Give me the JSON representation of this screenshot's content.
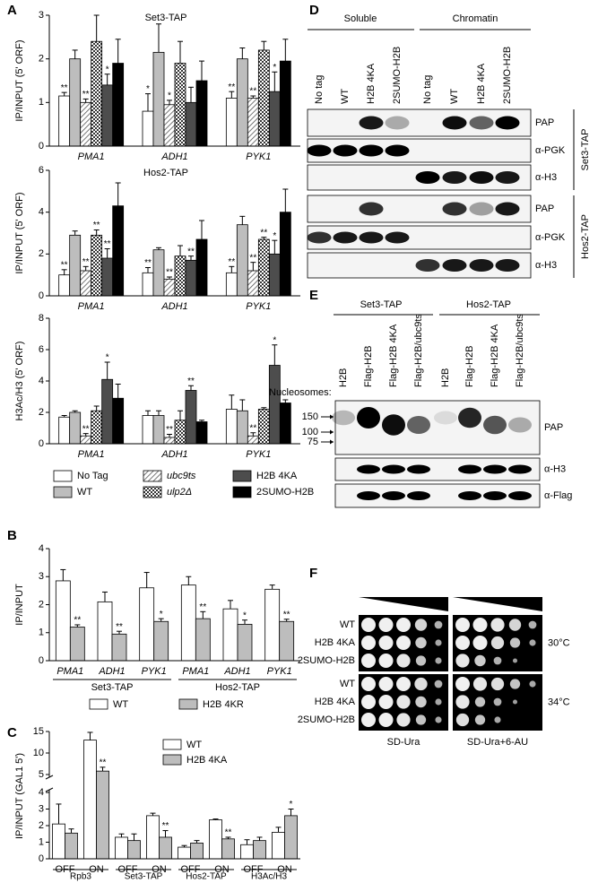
{
  "chart_data": [
    {
      "type": "bar",
      "panel": "A",
      "categories": [
        "PMA1",
        "ADH1",
        "PYK1"
      ],
      "series": [
        {
          "name": "No Tag",
          "color": "#ffffff"
        },
        {
          "name": "WT",
          "color": "#bdbdbd"
        },
        {
          "name": "ubc9ts",
          "color": "#555555",
          "pattern": "hatch"
        },
        {
          "name": "ulp2Δ",
          "color": "#333333",
          "pattern": "checker"
        },
        {
          "name": "H2B 4KA",
          "color": "#4d4d4d"
        },
        {
          "name": "2SUMO-H2B",
          "color": "#000000"
        }
      ],
      "subplots": [
        {
          "title": "Set3-TAP",
          "ylabel": "IP/INPUT (5' ORF)",
          "ylim": [
            0,
            3
          ],
          "yticks": [
            0,
            1,
            2,
            3
          ],
          "series": [
            {
              "values": [
                1.15,
                0.8,
                1.1
              ],
              "errors": [
                0.08,
                0.4,
                0.15
              ],
              "annotations": [
                "**",
                "*",
                "**"
              ]
            },
            {
              "values": [
                2.0,
                2.15,
                2.0
              ],
              "errors": [
                0.2,
                0.65,
                0.25
              ],
              "annotations": [
                null,
                null,
                null
              ]
            },
            {
              "values": [
                1.0,
                0.95,
                1.1
              ],
              "errors": [
                0.08,
                0.1,
                0.05
              ],
              "annotations": [
                "**",
                "*",
                "**"
              ]
            },
            {
              "values": [
                2.4,
                1.9,
                2.2
              ],
              "errors": [
                0.6,
                0.5,
                0.2
              ],
              "annotations": [
                null,
                null,
                null
              ]
            },
            {
              "values": [
                1.4,
                1.0,
                1.25
              ],
              "errors": [
                0.25,
                0.35,
                0.45
              ],
              "annotations": [
                "*",
                null,
                "*"
              ]
            },
            {
              "values": [
                1.9,
                1.5,
                1.95
              ],
              "errors": [
                0.55,
                0.45,
                0.5
              ],
              "annotations": [
                null,
                null,
                null
              ]
            }
          ]
        },
        {
          "title": "Hos2-TAP",
          "ylabel": "IP/INPUT (5' ORF)",
          "ylim": [
            0,
            6
          ],
          "yticks": [
            0,
            2,
            4,
            6
          ],
          "series": [
            {
              "values": [
                1.0,
                1.1,
                1.1
              ],
              "errors": [
                0.25,
                0.25,
                0.3
              ],
              "annotations": [
                "**",
                "**",
                "**"
              ]
            },
            {
              "values": [
                2.9,
                2.2,
                3.4
              ],
              "errors": [
                0.2,
                0.1,
                0.4
              ],
              "annotations": [
                null,
                null,
                null
              ]
            },
            {
              "values": [
                1.2,
                0.8,
                1.2
              ],
              "errors": [
                0.2,
                0.1,
                0.4
              ],
              "annotations": [
                "**",
                "**",
                "**"
              ]
            },
            {
              "values": [
                2.9,
                1.9,
                2.7
              ],
              "errors": [
                0.25,
                0.5,
                0.1
              ],
              "annotations": [
                "**",
                null,
                "**"
              ]
            },
            {
              "values": [
                1.8,
                1.7,
                2.0
              ],
              "errors": [
                0.45,
                0.2,
                0.65
              ],
              "annotations": [
                "**",
                "**",
                "*"
              ]
            },
            {
              "values": [
                4.3,
                2.7,
                4.0
              ],
              "errors": [
                1.1,
                0.9,
                1.1
              ],
              "annotations": [
                null,
                null,
                null
              ]
            }
          ]
        },
        {
          "ylabel": "H3Ac/H3 (5' ORF)",
          "ylim": [
            0,
            8
          ],
          "yticks": [
            0,
            2,
            4,
            6,
            8
          ],
          "series": [
            {
              "values": [
                1.7,
                1.8,
                2.2
              ],
              "errors": [
                0.1,
                0.3,
                0.9
              ],
              "annotations": [
                null,
                null,
                null
              ]
            },
            {
              "values": [
                2.0,
                1.8,
                2.1
              ],
              "errors": [
                0.1,
                0.3,
                0.7
              ],
              "annotations": [
                null,
                null,
                null
              ]
            },
            {
              "values": [
                0.5,
                0.4,
                0.5
              ],
              "errors": [
                0.15,
                0.2,
                0.2
              ],
              "annotations": [
                "**",
                "**",
                "**"
              ]
            },
            {
              "values": [
                2.1,
                1.5,
                2.2
              ],
              "errors": [
                0.3,
                0.6,
                0.1
              ],
              "annotations": [
                null,
                null,
                null
              ]
            },
            {
              "values": [
                4.1,
                3.4,
                5.0
              ],
              "errors": [
                1.1,
                0.3,
                1.3
              ],
              "annotations": [
                "*",
                "**",
                "*"
              ]
            },
            {
              "values": [
                2.9,
                1.4,
                2.6
              ],
              "errors": [
                0.9,
                0.1,
                0.2
              ],
              "annotations": [
                null,
                null,
                null
              ]
            }
          ]
        }
      ]
    },
    {
      "type": "bar",
      "panel": "B",
      "ylabel": "IP/INPUT",
      "ylim": [
        0,
        4
      ],
      "yticks": [
        0,
        1,
        2,
        3,
        4
      ],
      "categories": [
        "PMA1",
        "ADH1",
        "PYK1",
        "PMA1",
        "ADH1",
        "PYK1"
      ],
      "groups": [
        "Set3-TAP",
        "Hos2-TAP"
      ],
      "series": [
        {
          "name": "WT",
          "color": "#ffffff",
          "values": [
            2.85,
            2.1,
            2.6,
            2.7,
            1.85,
            2.55
          ],
          "errors": [
            0.4,
            0.35,
            0.55,
            0.3,
            0.3,
            0.15
          ],
          "annotations": [
            null,
            null,
            null,
            null,
            null,
            null
          ]
        },
        {
          "name": "H2B 4KR",
          "color": "#bdbdbd",
          "values": [
            1.2,
            0.95,
            1.4,
            1.5,
            1.3,
            1.4
          ],
          "errors": [
            0.08,
            0.1,
            0.1,
            0.25,
            0.15,
            0.08
          ],
          "annotations": [
            "**",
            "**",
            "*",
            "**",
            "*",
            "**"
          ]
        }
      ]
    },
    {
      "type": "bar",
      "panel": "C",
      "ylabel": "IP/INPUT (GAL1 5')",
      "ylim": [
        0,
        15
      ],
      "ybreak": [
        4,
        5
      ],
      "yticks": [
        0,
        1,
        2,
        3,
        4,
        5,
        10,
        15
      ],
      "categories": [
        "OFF",
        "ON",
        "OFF",
        "ON",
        "OFF",
        "ON",
        "OFF",
        "ON"
      ],
      "groups": [
        "Rpb3",
        "Set3-TAP",
        "Hos2-TAP",
        "H3Ac/H3"
      ],
      "series": [
        {
          "name": "WT",
          "color": "#ffffff",
          "values": [
            2.1,
            13,
            1.3,
            2.6,
            0.7,
            2.35,
            0.85,
            1.6
          ],
          "errors": [
            1.2,
            1.8,
            0.2,
            0.15,
            0.1,
            0.05,
            0.3,
            0.3
          ],
          "annotations": [
            null,
            null,
            null,
            null,
            null,
            null,
            null,
            null
          ]
        },
        {
          "name": "H2B 4KA",
          "color": "#bdbdbd",
          "values": [
            1.55,
            5.8,
            1.1,
            1.3,
            0.95,
            1.2,
            1.1,
            2.6
          ],
          "errors": [
            0.25,
            0.9,
            0.4,
            0.4,
            0.15,
            0.1,
            0.2,
            0.4
          ],
          "annotations": [
            null,
            "**",
            null,
            "**",
            null,
            "**",
            null,
            "*"
          ]
        }
      ]
    }
  ],
  "panel_d": {
    "label": "D",
    "fractions": [
      "Soluble",
      "Chromatin"
    ],
    "lanes": [
      "No tag",
      "WT",
      "H2B 4KA",
      "2SUMO-H2B",
      "No tag",
      "WT",
      "H2B 4KA",
      "2SUMO-H2B"
    ],
    "blocks": [
      {
        "name": "Set3-TAP",
        "rows": [
          "PAP",
          "α-PGK",
          "α-H3"
        ]
      },
      {
        "name": "Hos2-TAP",
        "rows": [
          "PAP",
          "α-PGK",
          "α-H3"
        ]
      }
    ]
  },
  "panel_e": {
    "label": "E",
    "strains": [
      "Set3-TAP",
      "Hos2-TAP"
    ],
    "lanes_title": "Nucleosomes:",
    "lanes": [
      "H2B",
      "Flag-H2B",
      "Flag-H2B 4KA",
      "Flag-H2B/ubc9ts",
      "H2B",
      "Flag-H2B",
      "Flag-H2B 4KA",
      "Flag-H2B/ubc9ts"
    ],
    "markers": [
      150,
      100,
      75
    ],
    "rows": [
      "PAP",
      "α-H3",
      "α-Flag"
    ]
  },
  "panel_f": {
    "label": "F",
    "rows": [
      "WT",
      "H2B 4KA",
      "2SUMO-H2B",
      "WT",
      "H2B 4KA",
      "2SUMO-H2B"
    ],
    "temps": [
      "30°C",
      "34°C"
    ],
    "media": [
      "SD-Ura",
      "SD-Ura+6-AU"
    ]
  }
}
